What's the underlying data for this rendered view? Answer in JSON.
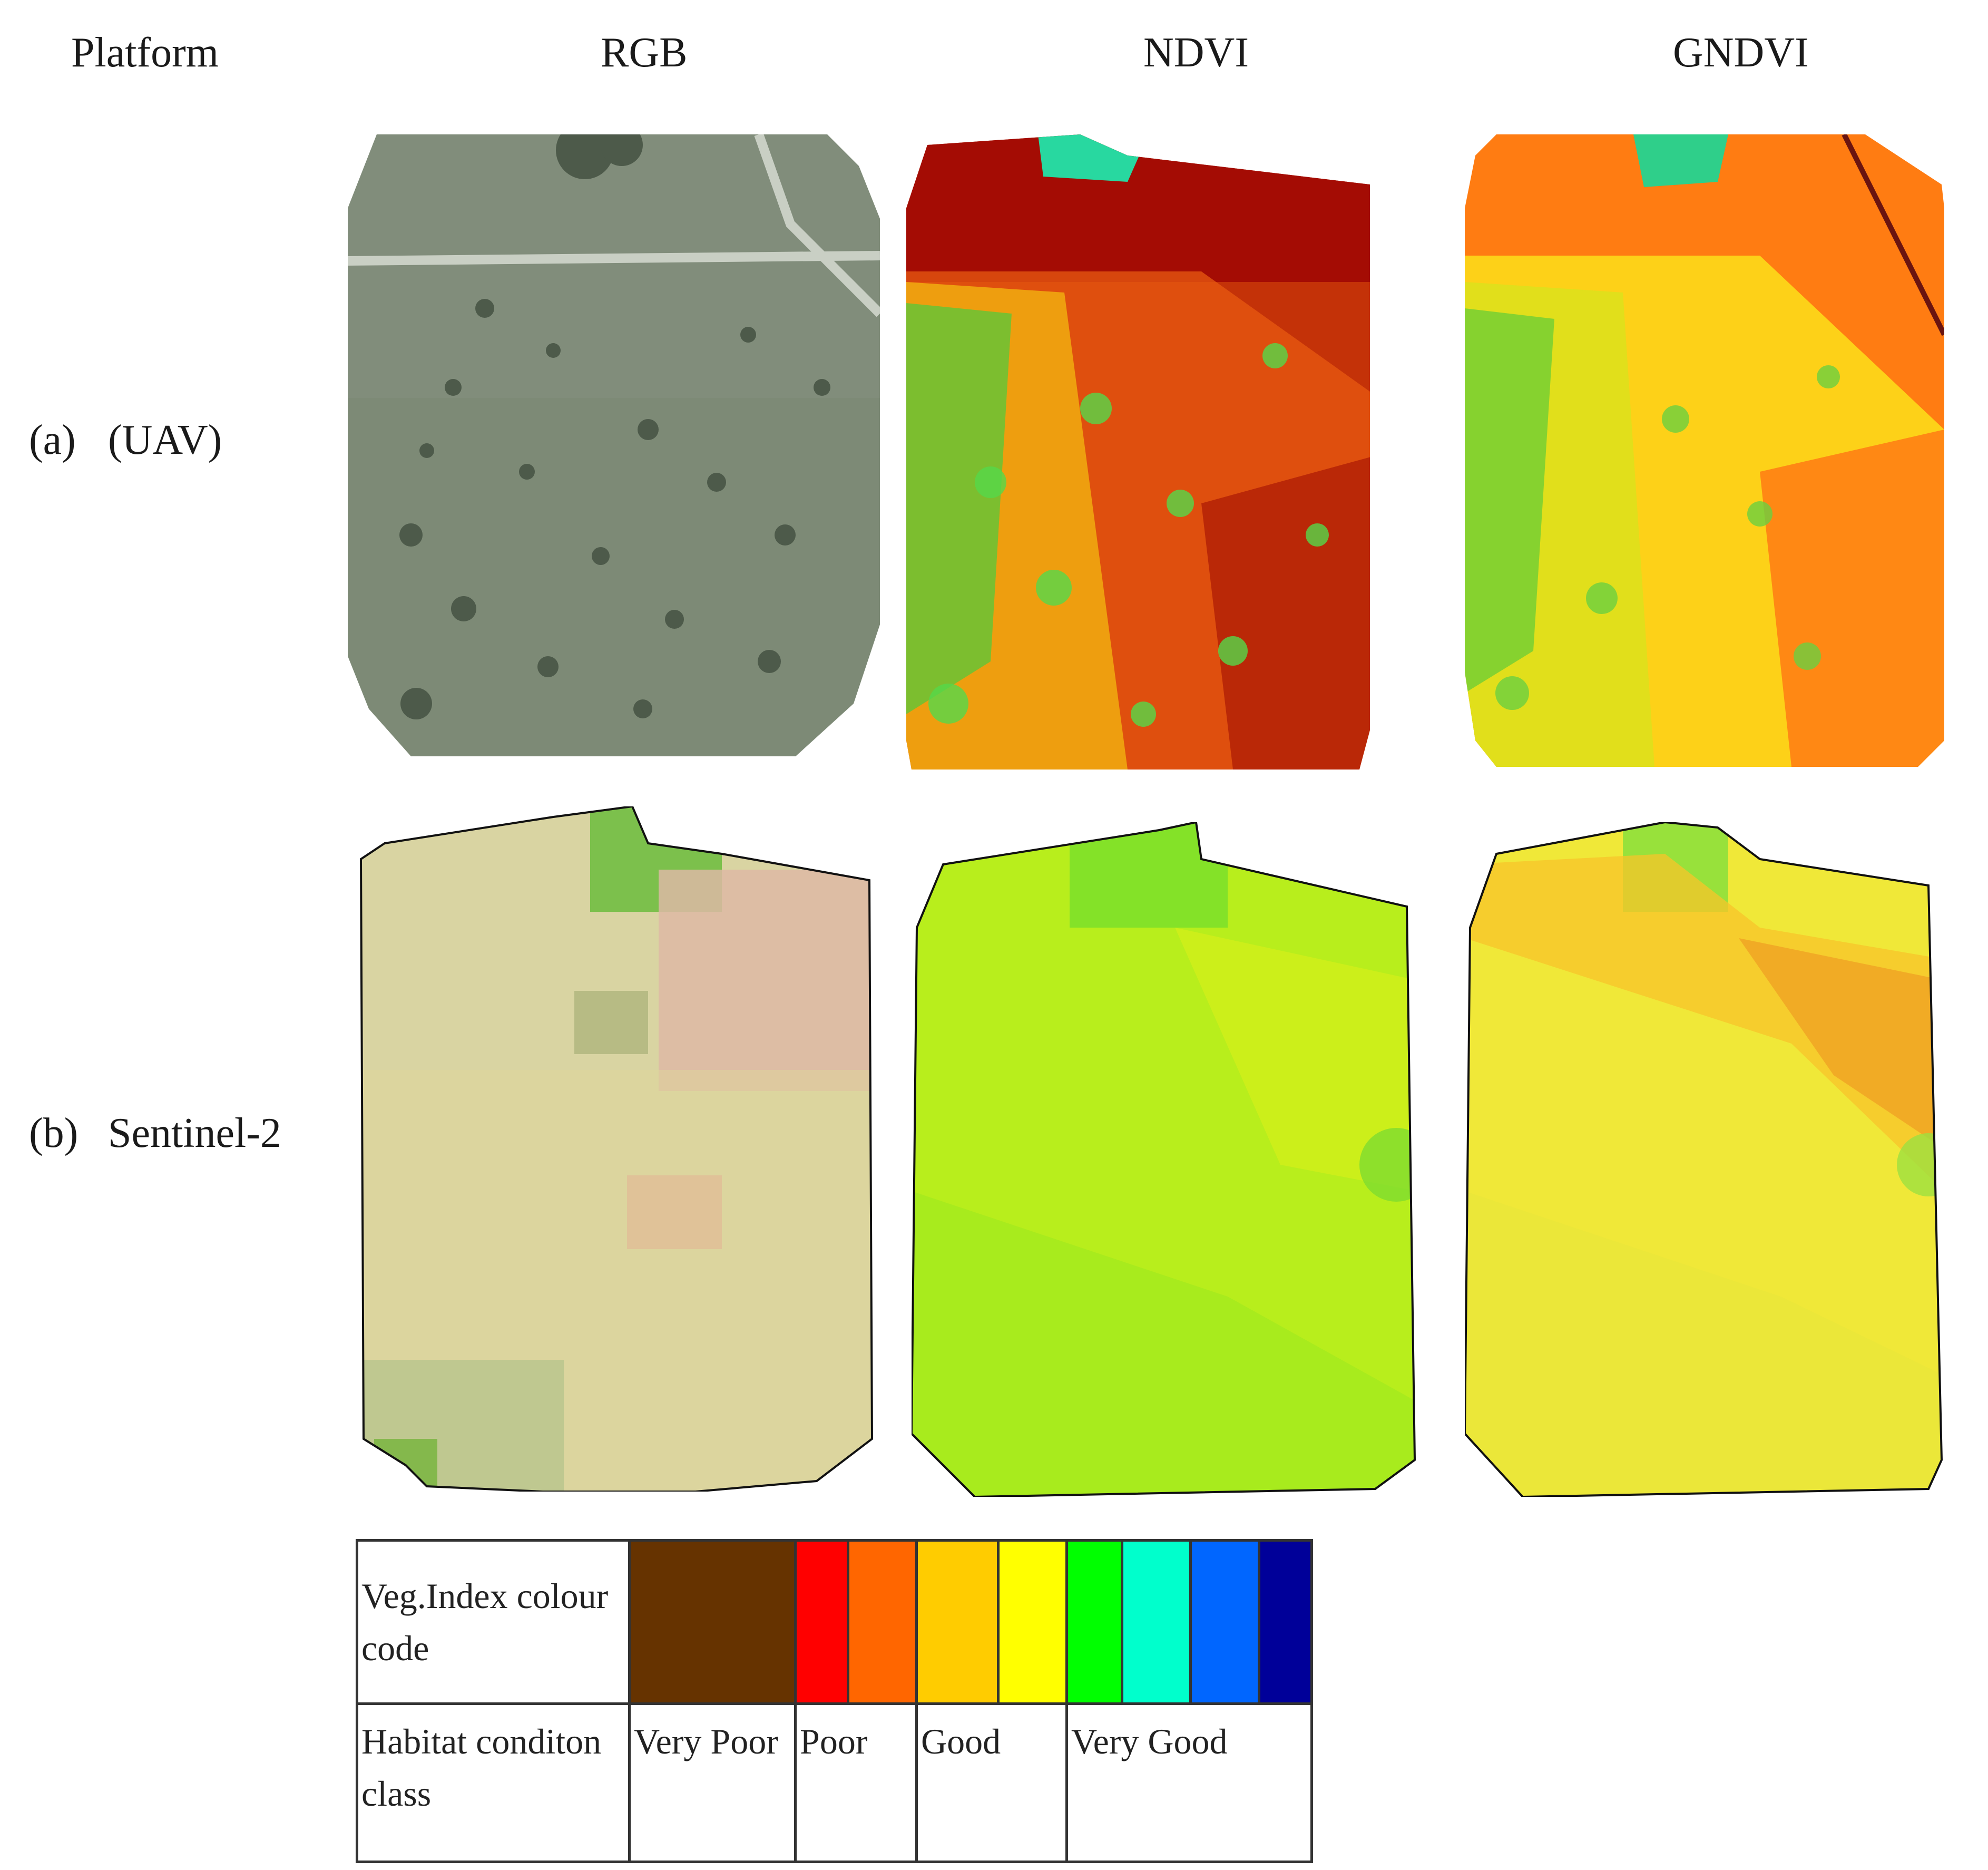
{
  "headers": {
    "platform": "Platform",
    "rgb": "RGB",
    "ndvi": "NDVI",
    "gndvi": "GNDVI"
  },
  "rows": [
    {
      "letter": "(a)",
      "label": "(UAV)"
    },
    {
      "letter": "(b)",
      "label": "Sentinel-2"
    }
  ],
  "legend": {
    "row1_label": "Veg.Index colour code",
    "row2_label": "Habitat conditon class",
    "swatches": [
      "#663300",
      "#ff0000",
      "#ff6600",
      "#ffcc00",
      "#ffff00",
      "#00ff00",
      "#00ffcc",
      "#0066ff",
      "#000099"
    ],
    "classes": [
      {
        "label": "Very Poor",
        "span": 1
      },
      {
        "label": "Poor",
        "span": 2
      },
      {
        "label": "Good",
        "span": 2
      },
      {
        "label": "Very Good",
        "span": 4
      }
    ]
  },
  "colors": {
    "uav_rgb_base": "#7f8b78",
    "ndvi_uav_base": "#c8320a",
    "gndvi_uav_base": "#ff7a10",
    "s2_rgb_base": "#d8d4a2",
    "s2_ndvi_base": "#b2f01c",
    "s2_gndvi_base": "#f2ec3a"
  }
}
